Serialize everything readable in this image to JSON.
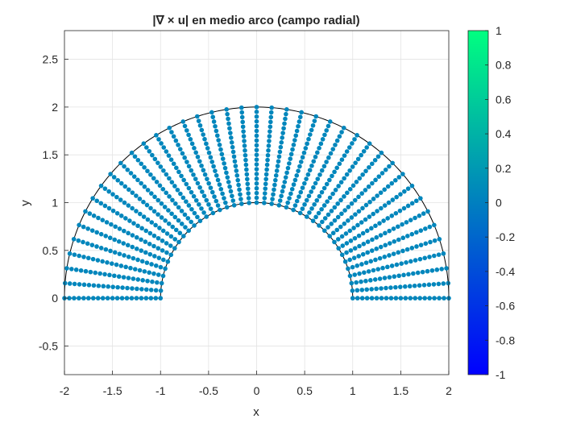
{
  "chart_data": {
    "type": "scatter",
    "title": "|∇ × u| en medio arco (campo radial)",
    "xlabel": "x",
    "ylabel": "y",
    "xlim": [
      -2,
      2
    ],
    "ylim": [
      -0.8,
      2.8
    ],
    "xticks": [
      "-2",
      "-1.5",
      "-1",
      "-0.5",
      "0",
      "0.5",
      "1",
      "1.5",
      "2"
    ],
    "yticks": [
      "-0.5",
      "0",
      "0.5",
      "1",
      "1.5",
      "2",
      "2.5"
    ],
    "grid": true,
    "domain": {
      "shape": "half-annulus",
      "inner_radius": 1,
      "outer_radius": 2,
      "angle_range_deg": [
        0,
        180
      ],
      "angular_samples": 41,
      "radial_samples": 21
    },
    "point_value": 0.05,
    "colorbar": {
      "colormap": "winter",
      "limits": [
        -1,
        1
      ],
      "ticks": [
        "-1",
        "-0.8",
        "-0.6",
        "-0.4",
        "-0.2",
        "0",
        "0.2",
        "0.4",
        "0.6",
        "0.8",
        "1"
      ],
      "color_low": "#0000ff",
      "color_high": "#00ff80"
    },
    "boundary_color": "#000000"
  }
}
